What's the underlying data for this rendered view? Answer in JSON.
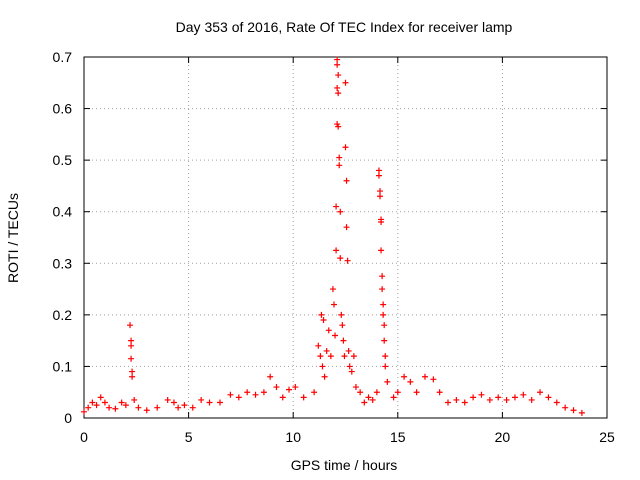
{
  "chart_data": {
    "type": "scatter",
    "title": "Day 353 of 2016, Rate Of TEC Index for receiver lamp",
    "xlabel": "GPS time / hours",
    "ylabel": "ROTI / TECUs",
    "xlim": [
      0,
      25
    ],
    "ylim": [
      0,
      0.7
    ],
    "x_ticks": [
      0,
      5,
      10,
      15,
      20,
      25
    ],
    "x_tick_labels": [
      "0",
      "5",
      "10",
      "15",
      "20",
      "25"
    ],
    "y_ticks": [
      0,
      0.1,
      0.2,
      0.3,
      0.4,
      0.5,
      0.6,
      0.7
    ],
    "y_tick_labels": [
      "0",
      "0.1",
      "0.2",
      "0.3",
      "0.4",
      "0.5",
      "0.6",
      "0.7"
    ],
    "grid": true,
    "legend": "none",
    "marker": "+",
    "series": [
      {
        "color": "#ff0000",
        "points": [
          [
            0.0,
            0.012
          ],
          [
            0.2,
            0.02
          ],
          [
            0.4,
            0.03
          ],
          [
            0.6,
            0.025
          ],
          [
            0.8,
            0.04
          ],
          [
            1.0,
            0.03
          ],
          [
            1.2,
            0.02
          ],
          [
            1.5,
            0.018
          ],
          [
            1.8,
            0.03
          ],
          [
            2.0,
            0.025
          ],
          [
            2.2,
            0.18
          ],
          [
            2.25,
            0.15
          ],
          [
            2.25,
            0.14
          ],
          [
            2.25,
            0.115
          ],
          [
            2.3,
            0.09
          ],
          [
            2.3,
            0.08
          ],
          [
            2.4,
            0.035
          ],
          [
            2.6,
            0.02
          ],
          [
            3.0,
            0.015
          ],
          [
            3.5,
            0.02
          ],
          [
            4.0,
            0.035
          ],
          [
            4.3,
            0.03
          ],
          [
            4.5,
            0.02
          ],
          [
            4.8,
            0.025
          ],
          [
            5.2,
            0.02
          ],
          [
            5.6,
            0.035
          ],
          [
            6.0,
            0.03
          ],
          [
            6.5,
            0.03
          ],
          [
            7.0,
            0.045
          ],
          [
            7.4,
            0.04
          ],
          [
            7.8,
            0.05
          ],
          [
            8.2,
            0.045
          ],
          [
            8.6,
            0.05
          ],
          [
            8.9,
            0.08
          ],
          [
            9.2,
            0.06
          ],
          [
            9.5,
            0.04
          ],
          [
            9.8,
            0.055
          ],
          [
            10.1,
            0.06
          ],
          [
            10.5,
            0.04
          ],
          [
            11.0,
            0.05
          ],
          [
            11.2,
            0.14
          ],
          [
            11.3,
            0.12
          ],
          [
            11.35,
            0.2
          ],
          [
            11.4,
            0.1
          ],
          [
            11.45,
            0.19
          ],
          [
            11.5,
            0.08
          ],
          [
            11.6,
            0.13
          ],
          [
            11.7,
            0.17
          ],
          [
            11.8,
            0.12
          ],
          [
            11.9,
            0.25
          ],
          [
            11.95,
            0.22
          ],
          [
            12.0,
            0.16
          ],
          [
            12.05,
            0.325
          ],
          [
            12.05,
            0.41
          ],
          [
            12.1,
            0.57
          ],
          [
            12.1,
            0.64
          ],
          [
            12.1,
            0.685
          ],
          [
            12.1,
            0.695
          ],
          [
            12.15,
            0.665
          ],
          [
            12.15,
            0.63
          ],
          [
            12.15,
            0.565
          ],
          [
            12.2,
            0.505
          ],
          [
            12.2,
            0.49
          ],
          [
            12.25,
            0.4
          ],
          [
            12.25,
            0.31
          ],
          [
            12.3,
            0.2
          ],
          [
            12.35,
            0.18
          ],
          [
            12.4,
            0.15
          ],
          [
            12.45,
            0.12
          ],
          [
            12.5,
            0.65
          ],
          [
            12.5,
            0.525
          ],
          [
            12.55,
            0.46
          ],
          [
            12.55,
            0.37
          ],
          [
            12.6,
            0.305
          ],
          [
            12.65,
            0.13
          ],
          [
            12.7,
            0.1
          ],
          [
            12.8,
            0.09
          ],
          [
            12.9,
            0.12
          ],
          [
            13.0,
            0.06
          ],
          [
            13.2,
            0.05
          ],
          [
            13.4,
            0.03
          ],
          [
            13.6,
            0.04
          ],
          [
            13.8,
            0.035
          ],
          [
            14.0,
            0.05
          ],
          [
            14.1,
            0.48
          ],
          [
            14.1,
            0.47
          ],
          [
            14.15,
            0.44
          ],
          [
            14.15,
            0.43
          ],
          [
            14.2,
            0.385
          ],
          [
            14.2,
            0.38
          ],
          [
            14.2,
            0.325
          ],
          [
            14.25,
            0.275
          ],
          [
            14.25,
            0.25
          ],
          [
            14.3,
            0.22
          ],
          [
            14.3,
            0.2
          ],
          [
            14.35,
            0.18
          ],
          [
            14.35,
            0.15
          ],
          [
            14.4,
            0.12
          ],
          [
            14.4,
            0.1
          ],
          [
            14.5,
            0.07
          ],
          [
            14.8,
            0.04
          ],
          [
            15.0,
            0.05
          ],
          [
            15.3,
            0.08
          ],
          [
            15.6,
            0.07
          ],
          [
            15.9,
            0.05
          ],
          [
            16.3,
            0.08
          ],
          [
            16.7,
            0.075
          ],
          [
            17.0,
            0.05
          ],
          [
            17.4,
            0.03
          ],
          [
            17.8,
            0.035
          ],
          [
            18.2,
            0.03
          ],
          [
            18.6,
            0.04
          ],
          [
            19.0,
            0.045
          ],
          [
            19.4,
            0.035
          ],
          [
            19.8,
            0.04
          ],
          [
            20.2,
            0.035
          ],
          [
            20.6,
            0.04
          ],
          [
            21.0,
            0.045
          ],
          [
            21.4,
            0.035
          ],
          [
            21.8,
            0.05
          ],
          [
            22.2,
            0.04
          ],
          [
            22.6,
            0.03
          ],
          [
            23.0,
            0.02
          ],
          [
            23.4,
            0.015
          ],
          [
            23.8,
            0.01
          ]
        ]
      }
    ]
  }
}
